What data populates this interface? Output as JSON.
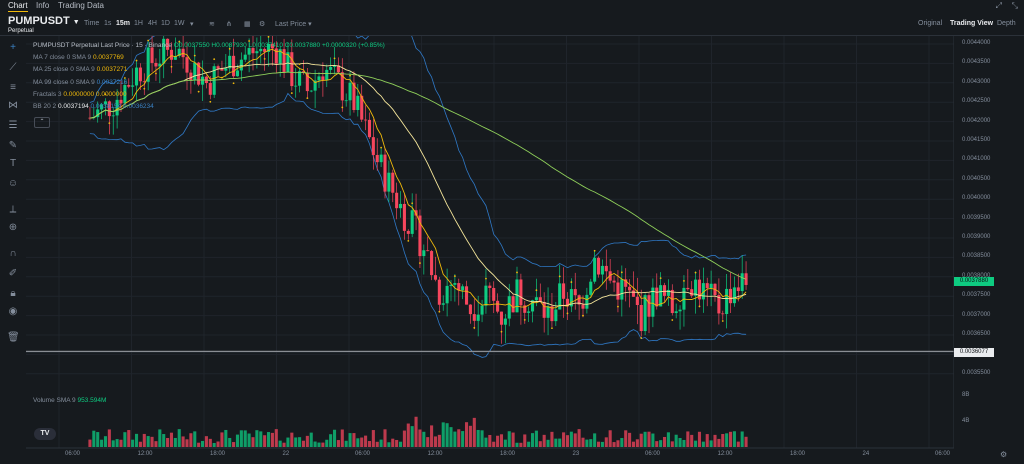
{
  "nav": {
    "tabs": [
      {
        "label": "Chart",
        "active": true
      },
      {
        "label": "Info",
        "active": false
      },
      {
        "label": "Trading Data",
        "active": false
      }
    ]
  },
  "symbol": {
    "name": "PUMPUSDT",
    "type": "Perpetual"
  },
  "timeframes": [
    {
      "label": "Time",
      "active": false
    },
    {
      "label": "1s",
      "active": false
    },
    {
      "label": "15m",
      "active": true
    },
    {
      "label": "1H",
      "active": false
    },
    {
      "label": "4H",
      "active": false
    },
    {
      "label": "1D",
      "active": false
    },
    {
      "label": "1W",
      "active": false
    }
  ],
  "price_type": "Last Price",
  "views": [
    {
      "label": "Original",
      "active": false
    },
    {
      "label": "Trading View",
      "active": true
    },
    {
      "label": "Depth",
      "active": false
    }
  ],
  "legend": {
    "title": "PUMPUSDT Perpetual Last Price · 15 · Binance",
    "ohlc": "O0.0037550 H0.0037930 L0.0037410 C0.0037880 +0.0000320 (+0.85%)",
    "ma7_label": "MA 7 close 0 SMA 9",
    "ma7_value": "0.0037769",
    "ma25_label": "MA 25 close 0 SMA 9",
    "ma25_value": "0.0037271",
    "ma99_label": "MA 99 close 0 SMA 9",
    "ma99_value": "0.0037216",
    "fractals_label": "Fractals 3",
    "fractals_v1": "0.0000000",
    "fractals_v2": "0.0000000",
    "bb_label": "BB 20 2",
    "bb_mid": "0.0037194",
    "bb_upper": "0.0038154",
    "bb_lower": "0.0036234"
  },
  "volume_legend": {
    "label": "Volume SMA 9",
    "value": "953.594M"
  },
  "colors": {
    "up": "#0ecb81",
    "down": "#f6465d",
    "ma7": "#f0b90b",
    "ma25": "#f5e69b",
    "ma99": "#8fcf5a",
    "bb": "#2f79c7",
    "bg": "#161a1e"
  },
  "chart_data": {
    "type": "candlestick",
    "price_axis": [
      "0.0044000",
      "0.0043500",
      "0.0043000",
      "0.0042500",
      "0.0042000",
      "0.0041500",
      "0.0041000",
      "0.0040500",
      "0.0040000",
      "0.0039500",
      "0.0039000",
      "0.0038500",
      "0.0038000",
      "0.0037500",
      "0.0037000",
      "0.0036500",
      "0.0036000",
      "0.0035500"
    ],
    "volume_axis": [
      "8B",
      "4B"
    ],
    "time_axis": [
      "06:00",
      "12:00",
      "18:00",
      "22",
      "06:00",
      "12:00",
      "18:00",
      "23",
      "06:00",
      "12:00",
      "18:00",
      "24",
      "06:00"
    ],
    "last_price": "0.0037880",
    "horizontal_line_price": "0.0036077",
    "path_prices": [
      [
        0,
        0.00421
      ],
      [
        6,
        0.00425
      ],
      [
        12,
        0.00433
      ],
      [
        18,
        0.00437
      ],
      [
        22,
        0.00439
      ],
      [
        26,
        0.00435
      ],
      [
        30,
        0.0043
      ],
      [
        36,
        0.00435
      ],
      [
        42,
        0.00438
      ],
      [
        48,
        0.00439
      ],
      [
        52,
        0.00432
      ],
      [
        56,
        0.00428
      ],
      [
        60,
        0.00434
      ],
      [
        64,
        0.0043
      ],
      [
        68,
        0.00425
      ],
      [
        74,
        0.0041
      ],
      [
        80,
        0.00398
      ],
      [
        86,
        0.00388
      ],
      [
        90,
        0.00376
      ],
      [
        94,
        0.00379
      ],
      [
        98,
        0.00372
      ],
      [
        102,
        0.00376
      ],
      [
        106,
        0.0037
      ],
      [
        110,
        0.00376
      ],
      [
        114,
        0.00374
      ],
      [
        118,
        0.0037
      ],
      [
        122,
        0.00376
      ],
      [
        126,
        0.00372
      ],
      [
        130,
        0.00385
      ],
      [
        134,
        0.00379
      ],
      [
        138,
        0.00376
      ],
      [
        142,
        0.0037
      ],
      [
        146,
        0.00376
      ],
      [
        150,
        0.00372
      ],
      [
        154,
        0.0038
      ],
      [
        158,
        0.00376
      ],
      [
        162,
        0.00372
      ],
      [
        166,
        0.00378
      ],
      [
        170,
        0.003788
      ]
    ]
  }
}
